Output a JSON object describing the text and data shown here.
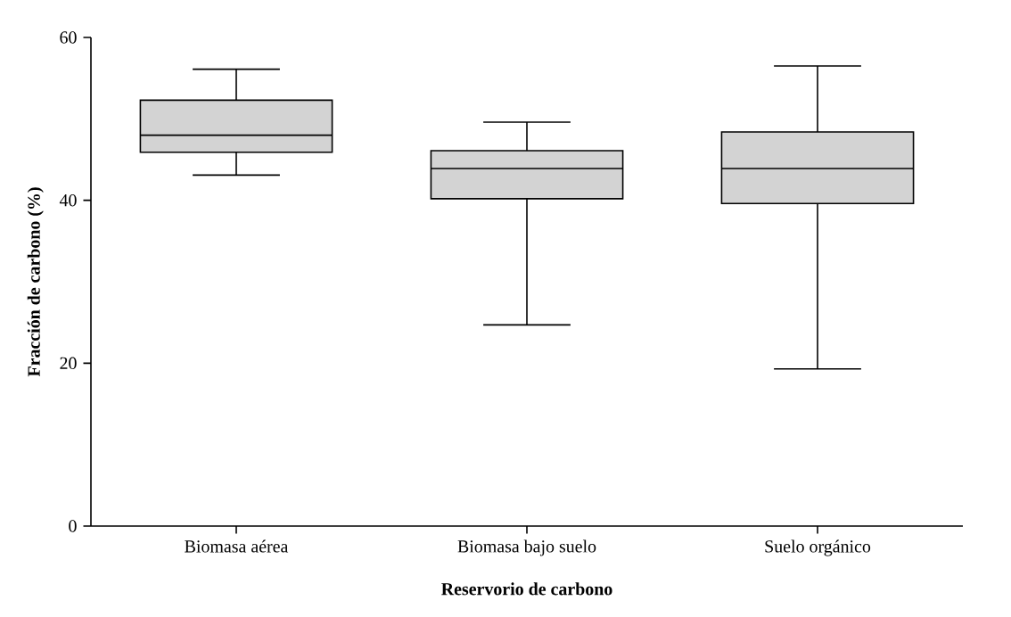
{
  "chart_data": {
    "type": "box",
    "xlabel": "Reservorio de carbono",
    "ylabel": "Fracción de carbono (%)",
    "categories": [
      "Biomasa aérea",
      "Biomasa bajo suelo",
      "Suelo orgánico"
    ],
    "color": "#d3d3d3",
    "boxes": [
      {
        "low": 43.1,
        "q1": 45.9,
        "median": 48.0,
        "q3": 52.3,
        "high": 56.1
      },
      {
        "low": 24.7,
        "q1": 40.2,
        "median": 43.9,
        "q3": 46.1,
        "high": 49.6
      },
      {
        "low": 19.3,
        "q1": 39.6,
        "median": 43.9,
        "q3": 48.4,
        "high": 56.5
      }
    ],
    "ylim": [
      0,
      60
    ],
    "yticks": [
      0,
      20,
      40,
      60
    ]
  }
}
